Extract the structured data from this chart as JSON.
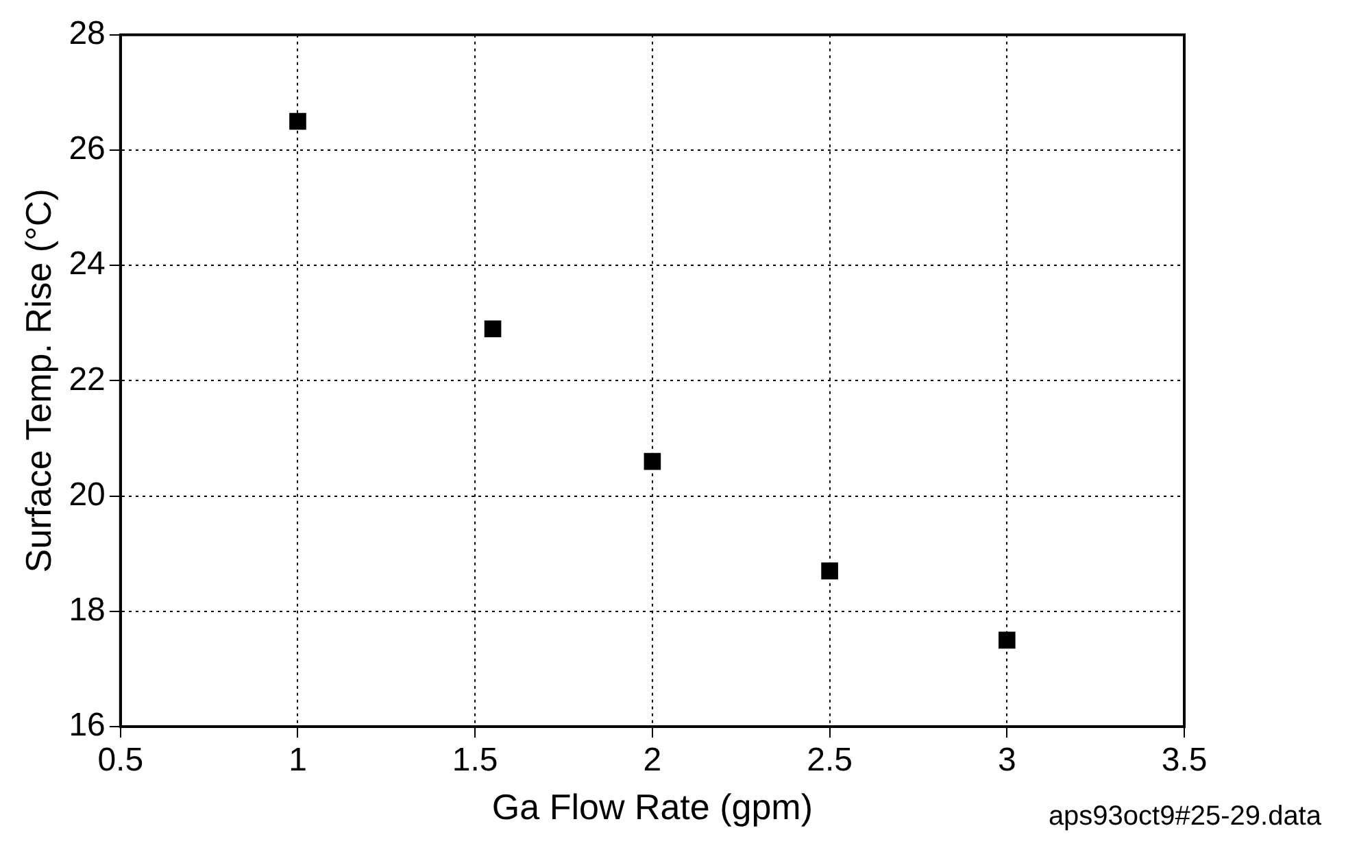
{
  "chart_data": {
    "type": "scatter",
    "xlabel": "Ga Flow Rate (gpm)",
    "ylabel": "Surface Temp. Rise (°C)",
    "x": [
      1,
      1.55,
      2,
      2.5,
      3
    ],
    "series": [
      {
        "color": "#000000",
        "values": [
          26.5,
          22.9,
          20.6,
          18.7,
          17.5
        ]
      }
    ],
    "xlim": [
      0.5,
      3.5
    ],
    "xticks": [
      0.5,
      1,
      1.5,
      2,
      2.5,
      3,
      3.5
    ],
    "ylim": [
      16,
      28
    ],
    "yticks": [
      16,
      18,
      20,
      22,
      24,
      26,
      28
    ],
    "grid": true,
    "marker": "square",
    "legend": false,
    "annotations": [
      "aps93oct9#25-29.data"
    ]
  }
}
